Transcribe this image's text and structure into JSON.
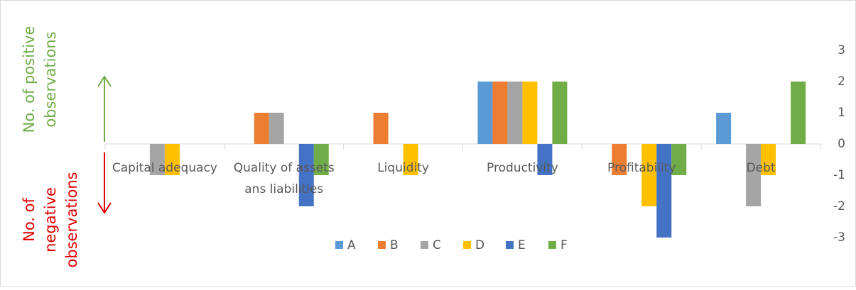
{
  "chart_data": {
    "type": "bar",
    "annotations": {
      "positive": [
        "No. of positive",
        "observations"
      ],
      "negative": [
        "No. of",
        "negative",
        "observations"
      ]
    },
    "categories": [
      "Capital adequacy",
      "Quality of assets ans liabilities",
      "Liquidity",
      "Productivity",
      "Profitability",
      "Debt"
    ],
    "series": [
      {
        "name": "A",
        "color": "#5b9bd5",
        "values": [
          0,
          0,
          0,
          2,
          0,
          1
        ]
      },
      {
        "name": "B",
        "color": "#ed7d31",
        "values": [
          0,
          1,
          1,
          2,
          -1,
          0
        ]
      },
      {
        "name": "C",
        "color": "#a5a5a5",
        "values": [
          -1,
          1,
          0,
          2,
          0,
          -2
        ]
      },
      {
        "name": "D",
        "color": "#ffc000",
        "values": [
          -1,
          0,
          -1,
          2,
          -2,
          -1
        ]
      },
      {
        "name": "E",
        "color": "#4472c4",
        "values": [
          0,
          -2,
          0,
          -1,
          -3,
          0
        ]
      },
      {
        "name": "F",
        "color": "#70ad47",
        "values": [
          0,
          -1,
          0,
          2,
          -1,
          2
        ]
      }
    ],
    "ylim": [
      -4,
      4
    ],
    "yticks": [
      -3,
      -2,
      -1,
      0,
      1,
      2,
      3
    ],
    "grid": false,
    "legend": "bottom"
  }
}
